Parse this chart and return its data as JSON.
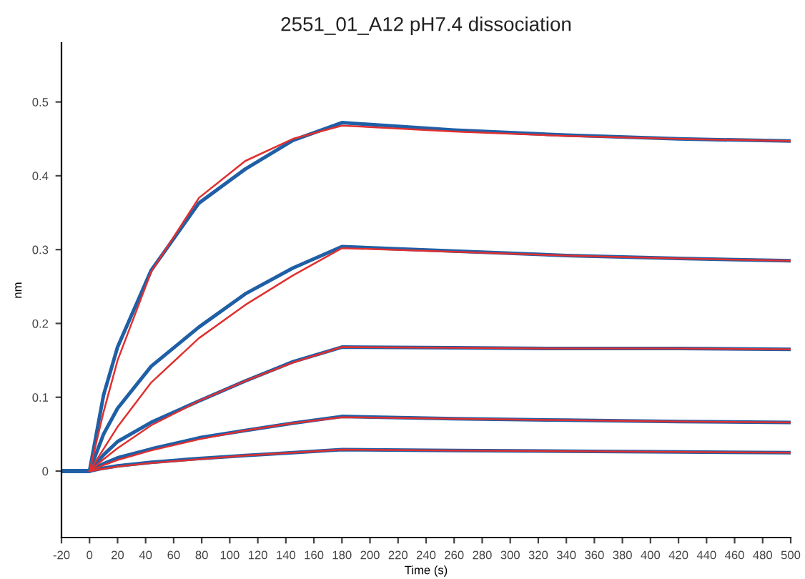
{
  "chart_data": {
    "type": "line",
    "title": "2551_01_A12 pH7.4 dissociation",
    "xlabel": "Time (s)",
    "ylabel": "nm",
    "x": [
      -20,
      0,
      10,
      20,
      44,
      78,
      111,
      145,
      180,
      260,
      340,
      420,
      500
    ],
    "series": [
      {
        "color": "#1f5fa6",
        "values": [
          0,
          0,
          0.103,
          0.168,
          0.272,
          0.363,
          0.409,
          0.448,
          0.472,
          0.462,
          0.455,
          0.45,
          0.447
        ]
      },
      {
        "color": "#1f5fa6",
        "values": [
          0,
          0,
          0.05,
          0.085,
          0.142,
          0.195,
          0.24,
          0.275,
          0.304,
          0.298,
          0.292,
          0.288,
          0.285
        ]
      },
      {
        "color": "#1f5fa6",
        "values": [
          0,
          0,
          0.022,
          0.04,
          0.066,
          0.095,
          0.122,
          0.148,
          0.168,
          0.167,
          0.166,
          0.166,
          0.165
        ]
      },
      {
        "color": "#1f5fa6",
        "values": [
          0,
          0,
          0.01,
          0.018,
          0.03,
          0.045,
          0.055,
          0.065,
          0.074,
          0.071,
          0.069,
          0.067,
          0.066
        ]
      },
      {
        "color": "#1f5fa6",
        "values": [
          0,
          0,
          0.004,
          0.007,
          0.012,
          0.017,
          0.021,
          0.025,
          0.029,
          0.028,
          0.027,
          0.026,
          0.025
        ]
      },
      {
        "color": "#e03030",
        "x": [
          0,
          10,
          20,
          44,
          78,
          111,
          145,
          180,
          260,
          340,
          420,
          500
        ],
        "values": [
          0,
          0.08,
          0.15,
          0.27,
          0.37,
          0.42,
          0.45,
          0.468,
          0.46,
          0.454,
          0.45,
          0.447
        ]
      },
      {
        "color": "#e03030",
        "x": [
          0,
          10,
          20,
          44,
          78,
          111,
          145,
          180,
          260,
          340,
          420,
          500
        ],
        "values": [
          0,
          0.03,
          0.06,
          0.12,
          0.18,
          0.225,
          0.265,
          0.302,
          0.297,
          0.292,
          0.288,
          0.285
        ]
      },
      {
        "color": "#e03030",
        "x": [
          0,
          10,
          20,
          44,
          78,
          111,
          145,
          180,
          260,
          340,
          420,
          500
        ],
        "values": [
          0,
          0.016,
          0.031,
          0.062,
          0.095,
          0.122,
          0.147,
          0.168,
          0.167,
          0.166,
          0.166,
          0.165
        ]
      },
      {
        "color": "#e03030",
        "x": [
          0,
          10,
          20,
          44,
          78,
          111,
          145,
          180,
          260,
          340,
          420,
          500
        ],
        "values": [
          0,
          0.008,
          0.015,
          0.028,
          0.043,
          0.055,
          0.065,
          0.073,
          0.071,
          0.069,
          0.067,
          0.066
        ]
      },
      {
        "color": "#e03030",
        "x": [
          0,
          10,
          20,
          44,
          78,
          111,
          145,
          180,
          260,
          340,
          420,
          500
        ],
        "values": [
          0,
          0.003,
          0.006,
          0.011,
          0.016,
          0.021,
          0.025,
          0.029,
          0.028,
          0.027,
          0.026,
          0.025
        ]
      }
    ],
    "xlim": [
      -20,
      500
    ],
    "xticks": [
      -20,
      0,
      20,
      40,
      60,
      80,
      100,
      120,
      140,
      160,
      180,
      200,
      220,
      240,
      260,
      280,
      300,
      320,
      340,
      360,
      380,
      400,
      420,
      440,
      460,
      480,
      500
    ],
    "ylim": [
      -0.09,
      0.58
    ],
    "yticks": [
      0,
      0.1,
      0.2,
      0.3,
      0.4,
      0.5
    ],
    "grid": false,
    "marker": "none",
    "line_style": "solid"
  }
}
